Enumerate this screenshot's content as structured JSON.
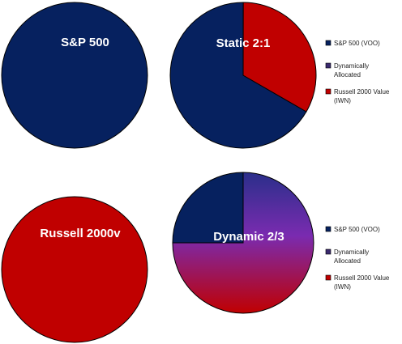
{
  "colors": {
    "sp500": "#06215F",
    "russell": "#C00000",
    "dynamic_top": "#2A2F8A",
    "dynamic_mid": "#7A2BB0",
    "dynamic_bottom": "#C00000"
  },
  "chart_data": [
    {
      "type": "pie",
      "title": "S&P 500",
      "slices": [
        {
          "label": "S&P 500 (VOO)",
          "value": 100,
          "color": "#06215F"
        }
      ],
      "legend": null
    },
    {
      "type": "pie",
      "title": "Static 2:1",
      "slices": [
        {
          "label": "S&P 500 (VOO)",
          "value": 66.7,
          "color": "#06215F"
        },
        {
          "label": "Russell 2000 Value (IWN)",
          "value": 33.3,
          "color": "#C00000"
        }
      ],
      "legend": {
        "placement": "right",
        "entries": [
          {
            "lines": [
              "S&P 500 (VOO)"
            ],
            "color": "#06215F"
          },
          {
            "lines": [
              "Dynamically",
              "Allocated"
            ],
            "color": "#3A2A6E"
          },
          {
            "lines": [
              "Russell 2000 Value",
              "(IWN)"
            ],
            "color": "#C00000"
          }
        ]
      }
    },
    {
      "type": "pie",
      "title": "Russell 2000v",
      "slices": [
        {
          "label": "Russell 2000 Value (IWN)",
          "value": 100,
          "color": "#C00000"
        }
      ],
      "legend": null
    },
    {
      "type": "pie",
      "title": "Dynamic 2/3",
      "slices": [
        {
          "label": "Dynamically Allocated",
          "value": 75,
          "color": "gradient"
        },
        {
          "label": "S&P 500 (VOO)",
          "value": 25,
          "color": "#06215F"
        }
      ],
      "legend": {
        "placement": "right",
        "entries": [
          {
            "lines": [
              "S&P 500 (VOO)"
            ],
            "color": "#06215F"
          },
          {
            "lines": [
              "Dynamically",
              "Allocated"
            ],
            "color": "#3A2A6E"
          },
          {
            "lines": [
              "Russell 2000 Value",
              "(IWN)"
            ],
            "color": "#C00000"
          }
        ]
      }
    }
  ]
}
